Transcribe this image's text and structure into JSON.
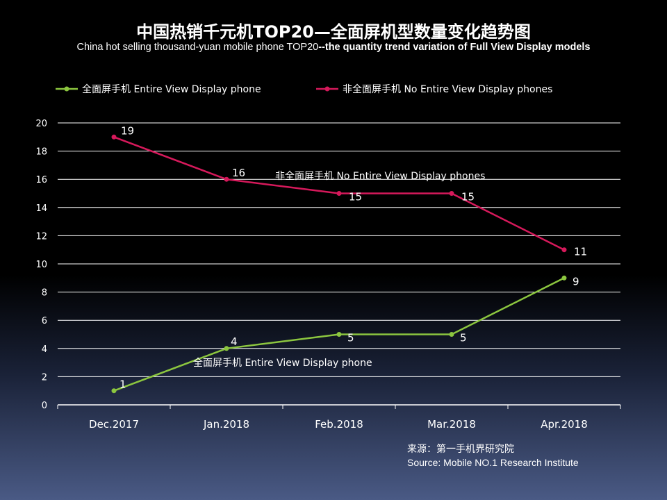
{
  "title": "中国热销千元机TOP20—全面屏机型数量变化趋势图",
  "subtitle_plain": "China hot selling thousand-yuan mobile phone TOP20",
  "subtitle_bold": "--the quantity trend variation of Full View Display models",
  "source_cn": "来源：第一手机界研究院",
  "source_en": "Source: Mobile NO.1 Research Institute",
  "chart_data": {
    "type": "line",
    "categories": [
      "Dec.2017",
      "Jan.2018",
      "Feb.2018",
      "Mar.2018",
      "Apr.2018"
    ],
    "ylim": [
      0,
      20
    ],
    "yticks": [
      0,
      2,
      4,
      6,
      8,
      10,
      12,
      14,
      16,
      18,
      20
    ],
    "grid": true,
    "legend_position": "top",
    "series": [
      {
        "name": "全面屏手机 Entire View Display phone",
        "color": "#8cc63f",
        "values": [
          1,
          4,
          5,
          5,
          9
        ],
        "inline_label": "全面屏手机 Entire View Display phone"
      },
      {
        "name": "非全面屏手机 No Entire View Display phones",
        "color": "#d6195b",
        "values": [
          19,
          16,
          15,
          15,
          11
        ],
        "inline_label": "非全面屏手机 No Entire View Display phones"
      }
    ]
  }
}
